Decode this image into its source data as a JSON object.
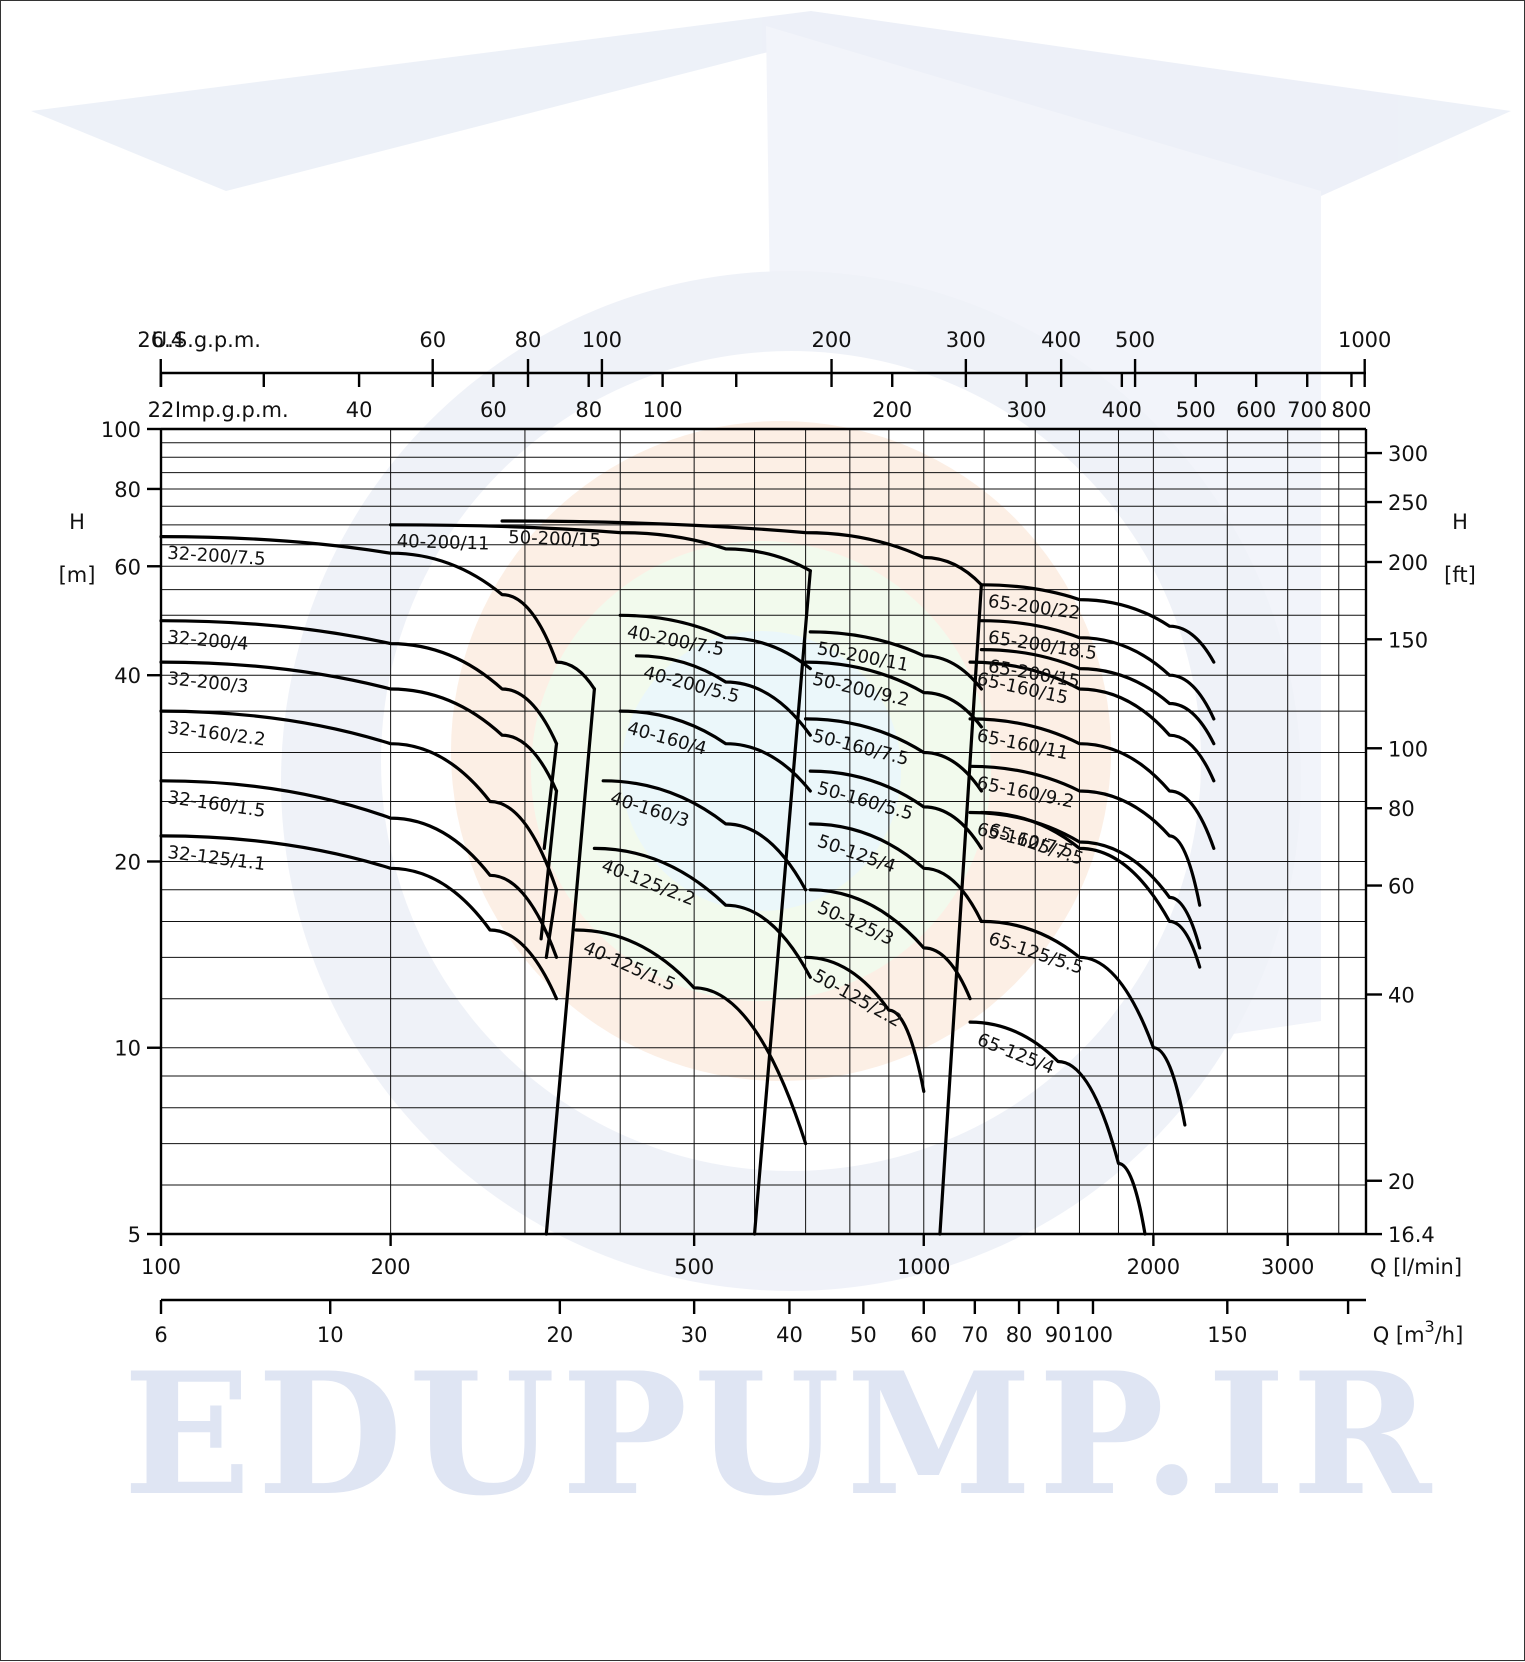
{
  "watermark": {
    "text": "EDUPUMP.IR"
  },
  "chart_data": {
    "type": "line",
    "y_axis_left": {
      "label_top": "H",
      "label_bottom": "[m]",
      "scale": "log",
      "range": [
        5,
        100
      ],
      "ticks": [
        5,
        10,
        20,
        40,
        60,
        80,
        100
      ]
    },
    "y_axis_right": {
      "label_top": "H",
      "label_bottom": "[ft]",
      "scale": "log",
      "range": [
        16.4,
        328
      ],
      "ticks": [
        16.4,
        20,
        40,
        60,
        80,
        100,
        150,
        200,
        250,
        300
      ]
    },
    "x_axis_lpm": {
      "label": "Q [l/min]",
      "scale": "log",
      "range": [
        100,
        3800
      ],
      "ticks": [
        100,
        200,
        500,
        1000,
        2000,
        3000
      ]
    },
    "x_axis_m3h": {
      "label": "Q [m",
      "label_sup": "3",
      "label_end": "/h]",
      "scale": "log",
      "ticks": [
        6,
        10,
        20,
        30,
        40,
        50,
        60,
        70,
        80,
        90,
        100,
        150
      ]
    },
    "x_axis_usgpm": {
      "label": "U.S.g.p.m.",
      "scale": "log",
      "ticks": [
        26.4,
        60,
        80,
        100,
        200,
        300,
        400,
        500,
        1000
      ]
    },
    "x_axis_impgpm": {
      "label": "Imp.g.p.m.",
      "scale": "log",
      "ticks": [
        22,
        40,
        60,
        80,
        100,
        200,
        300,
        400,
        500,
        600,
        700,
        800
      ]
    },
    "grid": true,
    "series": [
      {
        "name": "32-200/7.5",
        "points": [
          [
            100,
            67
          ],
          [
            200,
            63
          ],
          [
            280,
            54
          ],
          [
            330,
            42
          ],
          [
            370,
            38
          ]
        ],
        "end_drop": [
          [
            370,
            38
          ],
          [
            320,
            5
          ]
        ]
      },
      {
        "name": "32-200/4",
        "points": [
          [
            100,
            49
          ],
          [
            200,
            45
          ],
          [
            280,
            38
          ],
          [
            330,
            31
          ]
        ],
        "end_drop": [
          [
            330,
            31
          ],
          [
            318,
            21
          ]
        ]
      },
      {
        "name": "32-200/3",
        "points": [
          [
            100,
            42
          ],
          [
            200,
            38
          ],
          [
            280,
            32
          ],
          [
            330,
            26
          ]
        ],
        "end_drop": [
          [
            330,
            26
          ],
          [
            315,
            15
          ]
        ]
      },
      {
        "name": "32-160/2.2",
        "points": [
          [
            100,
            35
          ],
          [
            200,
            31
          ],
          [
            270,
            25
          ],
          [
            330,
            18
          ]
        ],
        "end_drop": [
          [
            330,
            18
          ],
          [
            320,
            14
          ]
        ]
      },
      {
        "name": "32-160/1.5",
        "points": [
          [
            100,
            27
          ],
          [
            200,
            23.5
          ],
          [
            270,
            19
          ],
          [
            330,
            14
          ]
        ]
      },
      {
        "name": "32-125/1.1",
        "points": [
          [
            100,
            22
          ],
          [
            200,
            19.5
          ],
          [
            270,
            15.5
          ],
          [
            330,
            12
          ]
        ]
      },
      {
        "name": "40-200/11",
        "points": [
          [
            200,
            70
          ],
          [
            400,
            68
          ],
          [
            550,
            64
          ],
          [
            710,
            59
          ]
        ],
        "end_drop": [
          [
            710,
            59
          ],
          [
            600,
            5
          ]
        ]
      },
      {
        "name": "40-200/7.5",
        "points": [
          [
            400,
            50
          ],
          [
            550,
            46
          ],
          [
            710,
            41
          ]
        ]
      },
      {
        "name": "40-200/5.5",
        "points": [
          [
            420,
            43
          ],
          [
            550,
            39
          ],
          [
            710,
            32
          ]
        ]
      },
      {
        "name": "40-160/4",
        "points": [
          [
            400,
            35
          ],
          [
            550,
            31
          ],
          [
            710,
            26
          ]
        ]
      },
      {
        "name": "40-160/3",
        "points": [
          [
            380,
            27
          ],
          [
            550,
            23
          ],
          [
            700,
            18
          ]
        ]
      },
      {
        "name": "40-125/2.2",
        "points": [
          [
            370,
            21
          ],
          [
            550,
            17
          ],
          [
            710,
            13
          ]
        ]
      },
      {
        "name": "40-125/1.5",
        "points": [
          [
            350,
            15.5
          ],
          [
            500,
            12.5
          ],
          [
            700,
            7
          ]
        ]
      },
      {
        "name": "50-200/15",
        "points": [
          [
            280,
            71
          ],
          [
            700,
            68
          ],
          [
            1000,
            62
          ],
          [
            1190,
            56
          ]
        ],
        "end_drop": [
          [
            1190,
            56
          ],
          [
            1050,
            5
          ]
        ]
      },
      {
        "name": "50-200/11",
        "points": [
          [
            710,
            47
          ],
          [
            1000,
            43
          ],
          [
            1190,
            38
          ]
        ]
      },
      {
        "name": "50-200/9.2",
        "points": [
          [
            700,
            42
          ],
          [
            1000,
            37.5
          ],
          [
            1190,
            33
          ]
        ]
      },
      {
        "name": "50-160/7.5",
        "points": [
          [
            700,
            34
          ],
          [
            1000,
            30
          ],
          [
            1190,
            26
          ]
        ]
      },
      {
        "name": "50-160/5.5",
        "points": [
          [
            710,
            28
          ],
          [
            1000,
            24.5
          ],
          [
            1190,
            21
          ]
        ]
      },
      {
        "name": "50-125/4",
        "points": [
          [
            710,
            23
          ],
          [
            1000,
            19.5
          ],
          [
            1190,
            16
          ]
        ]
      },
      {
        "name": "50-125/3",
        "points": [
          [
            710,
            18
          ],
          [
            1000,
            14.5
          ],
          [
            1150,
            12
          ]
        ]
      },
      {
        "name": "50-125/2.2",
        "points": [
          [
            700,
            14
          ],
          [
            900,
            11.5
          ],
          [
            1000,
            8.5
          ]
        ]
      },
      {
        "name": "65-200/22",
        "points": [
          [
            1190,
            56
          ],
          [
            1600,
            53
          ],
          [
            2100,
            48
          ],
          [
            2400,
            42
          ]
        ]
      },
      {
        "name": "65-200/18.5",
        "points": [
          [
            1190,
            49
          ],
          [
            1600,
            46
          ],
          [
            2100,
            40
          ],
          [
            2400,
            34
          ]
        ]
      },
      {
        "name": "65-160/15",
        "points": [
          [
            1150,
            42
          ],
          [
            1600,
            38
          ],
          [
            2100,
            32
          ],
          [
            2400,
            27
          ]
        ]
      },
      {
        "name": "65-200/15",
        "points": [
          [
            1190,
            44
          ],
          [
            1600,
            41
          ],
          [
            2100,
            36
          ],
          [
            2400,
            31
          ]
        ]
      },
      {
        "name": "65-160/11",
        "points": [
          [
            1150,
            34
          ],
          [
            1600,
            31
          ],
          [
            2100,
            26
          ],
          [
            2400,
            21
          ]
        ]
      },
      {
        "name": "65-160/9.2",
        "points": [
          [
            1150,
            28.5
          ],
          [
            1600,
            26
          ],
          [
            2100,
            22
          ],
          [
            2300,
            17
          ]
        ]
      },
      {
        "name": "65-160/7.5",
        "points": [
          [
            1150,
            24
          ],
          [
            1600,
            21.5
          ],
          [
            2100,
            17.5
          ],
          [
            2300,
            14.5
          ]
        ]
      },
      {
        "name": "65-125/7.5",
        "points": [
          [
            1190,
            24
          ],
          [
            1600,
            21
          ],
          [
            2100,
            16
          ],
          [
            2300,
            13.5
          ]
        ]
      },
      {
        "name": "65-125/5.5",
        "points": [
          [
            1190,
            16
          ],
          [
            1600,
            14
          ],
          [
            2000,
            10
          ],
          [
            2200,
            7.5
          ]
        ]
      },
      {
        "name": "65-125/4",
        "points": [
          [
            1150,
            11
          ],
          [
            1500,
            9.5
          ],
          [
            1800,
            6.5
          ],
          [
            1950,
            5
          ]
        ]
      }
    ]
  }
}
